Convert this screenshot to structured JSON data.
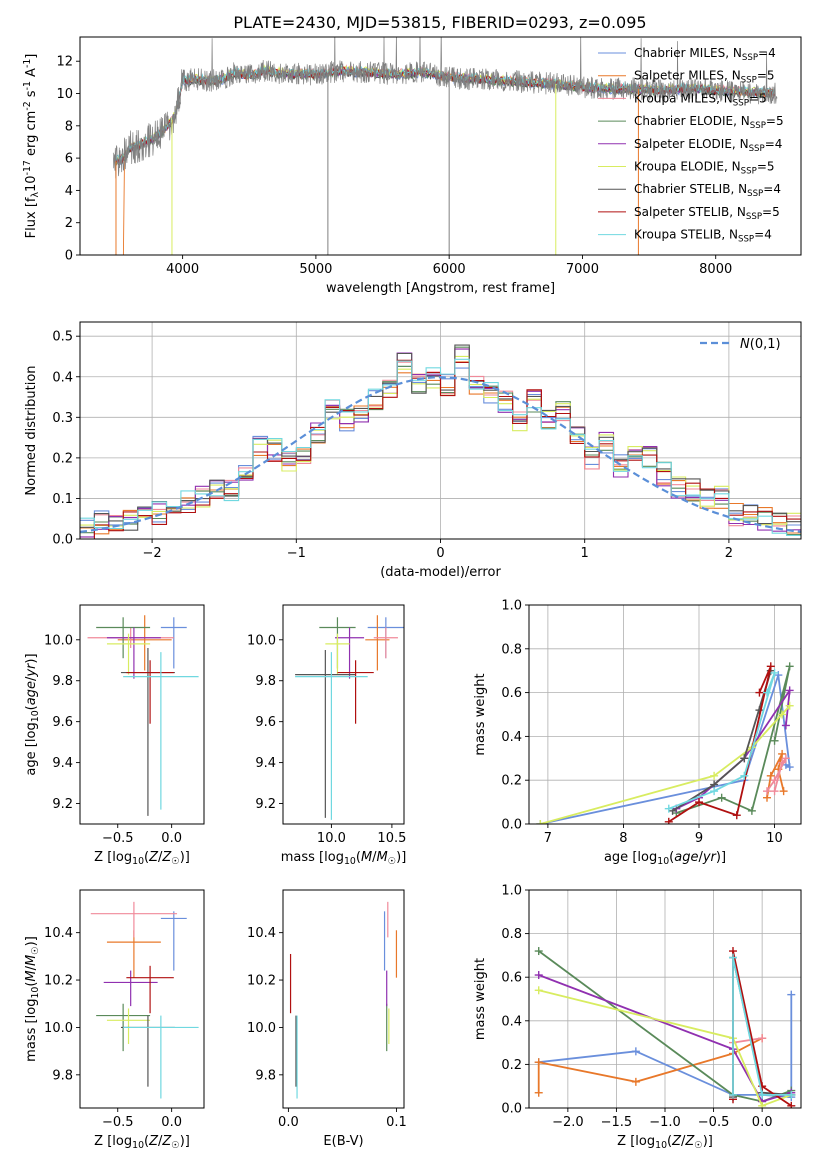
{
  "figure_title": "PLATE=2430, MJD=53815, FIBERID=0293, z=0.095",
  "model_colors": [
    "#6a8fdc",
    "#e8782a",
    "#f08a9a",
    "#5a8a5a",
    "#9030b0",
    "#d8ec60",
    "#555555",
    "#b01010",
    "#70d8e0"
  ],
  "chart_data": [
    {
      "id": "spectrum",
      "type": "line",
      "title": "PLATE=2430, MJD=53815, FIBERID=0293, z=0.095",
      "xlabel": "wavelength [Angstrom, rest frame]",
      "ylabel": "Flux [f$_\\lambda$10$^{-17}$ erg cm$^{-2}$ s$^{-1}$ A$^{-1}$]",
      "xlim": [
        3230,
        8640
      ],
      "ylim": [
        0,
        13.5
      ],
      "xticks": [
        4000,
        5000,
        6000,
        7000,
        8000
      ],
      "yticks": [
        0,
        2,
        4,
        6,
        8,
        10,
        12
      ],
      "grid": false,
      "legend_position": "right",
      "data_series": {
        "name": "data",
        "x": [
          3500,
          3550,
          3600,
          3700,
          3800,
          3900,
          3950,
          4000,
          4100,
          4200,
          4300,
          4400,
          4500,
          4600,
          4800,
          5000,
          5200,
          5400,
          5600,
          5800,
          6000,
          6200,
          6400,
          6600,
          6800,
          7000,
          7200,
          7400,
          7600,
          7800,
          8000,
          8200,
          8400
        ],
        "y": [
          5.8,
          6.0,
          6.6,
          6.9,
          7.3,
          8.1,
          8.8,
          10.8,
          10.9,
          10.8,
          10.9,
          11.3,
          11.1,
          11.4,
          11.2,
          11.2,
          11.4,
          11.3,
          11.2,
          11.3,
          11.0,
          10.9,
          10.8,
          10.7,
          10.6,
          10.4,
          10.3,
          10.3,
          10.2,
          10.3,
          10.2,
          10.1,
          10.0
        ]
      },
      "legend": [
        {
          "name": "Chabrier MILES, N$_{SSP}$=4",
          "color": "#6a8fdc"
        },
        {
          "name": "Salpeter MILES, N$_{SSP}$=5",
          "color": "#e8782a"
        },
        {
          "name": "Kroupa MILES, N$_{SSP}$=5",
          "color": "#f08a9a"
        },
        {
          "name": "Chabrier ELODIE, N$_{SSP}$=5",
          "color": "#5a8a5a"
        },
        {
          "name": "Salpeter ELODIE, N$_{SSP}$=4",
          "color": "#9030b0"
        },
        {
          "name": "Kroupa ELODIE, N$_{SSP}$=5",
          "color": "#d8ec60"
        },
        {
          "name": "Chabrier STELIB, N$_{SSP}$=4",
          "color": "#555555"
        },
        {
          "name": "Salpeter STELIB, N$_{SSP}$=5",
          "color": "#b01010"
        },
        {
          "name": "Kroupa STELIB, N$_{SSP}$=4",
          "color": "#70d8e0"
        }
      ]
    },
    {
      "id": "residual-hist",
      "type": "line",
      "xlabel": "(data-model)/error",
      "ylabel": "Normed distribution",
      "xlim": [
        -2.5,
        2.5
      ],
      "ylim": [
        0,
        0.535
      ],
      "xticks": [
        -2,
        -1,
        0,
        1,
        2
      ],
      "yticks": [
        0.0,
        0.1,
        0.2,
        0.3,
        0.4,
        0.5
      ],
      "grid": true,
      "legend": [
        {
          "name": "$\\mathcal{N}(0,1)$",
          "color": "#5b8fd8",
          "style": "dashed"
        }
      ],
      "legend_position": "top-right",
      "bin_width": 0.1,
      "histogram_bins_x_start": [
        -2.5,
        -2.4,
        -2.3,
        -2.2,
        -2.1,
        -2.0,
        -1.9,
        -1.8,
        -1.7,
        -1.6,
        -1.5,
        -1.4,
        -1.3,
        -1.2,
        -1.1,
        -1.0,
        -0.9,
        -0.8,
        -0.7,
        -0.6,
        -0.5,
        -0.4,
        -0.3,
        -0.2,
        -0.1,
        0.0,
        0.1,
        0.2,
        0.3,
        0.4,
        0.5,
        0.6,
        0.7,
        0.8,
        0.9,
        1.0,
        1.1,
        1.2,
        1.3,
        1.4,
        1.5,
        1.6,
        1.7,
        1.8,
        1.9,
        2.0,
        2.1,
        2.2,
        2.3,
        2.4
      ],
      "histogram_base_heights": [
        0.025,
        0.04,
        0.035,
        0.05,
        0.06,
        0.065,
        0.06,
        0.09,
        0.1,
        0.13,
        0.12,
        0.16,
        0.225,
        0.22,
        0.19,
        0.2,
        0.26,
        0.32,
        0.29,
        0.3,
        0.34,
        0.37,
        0.43,
        0.38,
        0.4,
        0.38,
        0.45,
        0.38,
        0.36,
        0.34,
        0.29,
        0.34,
        0.3,
        0.31,
        0.26,
        0.2,
        0.24,
        0.18,
        0.22,
        0.2,
        0.16,
        0.13,
        0.12,
        0.1,
        0.1,
        0.06,
        0.055,
        0.05,
        0.04,
        0.035
      ],
      "gaussian": {
        "mean": 0,
        "sigma": 1
      }
    },
    {
      "id": "age-vs-z",
      "type": "scatter",
      "xlabel": "Z [log$_{10}$($Z/Z_\\odot$)]",
      "ylabel": "age  [log$_{10}$($age/yr$)]",
      "xlim": [
        -0.85,
        0.3
      ],
      "ylim": [
        9.1,
        10.17
      ],
      "xticks": [
        -0.5,
        0.0
      ],
      "yticks": [
        9.2,
        9.4,
        9.6,
        9.8,
        10.0
      ],
      "points": [
        {
          "x": 0.02,
          "y": 10.06,
          "xerr": 0.12,
          "yerr": [
            0.2,
            0.05
          ],
          "color": "#6a8fdc"
        },
        {
          "x": -0.25,
          "y": 10.0,
          "xerr": 0.25,
          "yerr": [
            0.15,
            0.12
          ],
          "color": "#e8782a"
        },
        {
          "x": -0.38,
          "y": 10.01,
          "xerr": 0.4,
          "yerr": [
            0.05,
            0.05
          ],
          "color": "#f08a9a"
        },
        {
          "x": -0.45,
          "y": 10.06,
          "xerr": 0.25,
          "yerr": [
            0.15,
            0.05
          ],
          "color": "#5a8a5a"
        },
        {
          "x": -0.35,
          "y": 10.01,
          "xerr": 0.25,
          "yerr": [
            0.2,
            0.05
          ],
          "color": "#9030b0"
        },
        {
          "x": -0.4,
          "y": 9.98,
          "xerr": 0.2,
          "yerr": [
            0.15,
            0.05
          ],
          "color": "#d8ec60"
        },
        {
          "x": -0.22,
          "y": 9.84,
          "xerr": 0.25,
          "yerr": [
            0.7,
            0.12
          ],
          "color": "#555555"
        },
        {
          "x": -0.2,
          "y": 9.84,
          "xerr": 0.22,
          "yerr": [
            0.25,
            0.06
          ],
          "color": "#b01010"
        },
        {
          "x": -0.1,
          "y": 9.82,
          "xerr": 0.35,
          "yerr": [
            0.65,
            0.12
          ],
          "color": "#70d8e0"
        }
      ]
    },
    {
      "id": "age-vs-mass",
      "type": "scatter",
      "xlabel": "mass [log$_{10}$($M/M_\\odot$)]",
      "ylabel": "",
      "xlim": [
        9.6,
        10.6
      ],
      "ylim": [
        9.1,
        10.17
      ],
      "xticks": [
        10.0,
        10.5
      ],
      "yticks": [
        9.2,
        9.4,
        9.6,
        9.8,
        10.0
      ],
      "points": [
        {
          "x": 10.45,
          "y": 10.06,
          "xerr": 0.15,
          "yerr": [
            0.15,
            0.05
          ],
          "color": "#6a8fdc"
        },
        {
          "x": 10.38,
          "y": 10.0,
          "xerr": 0.1,
          "yerr": [
            0.15,
            0.12
          ],
          "color": "#e8782a"
        },
        {
          "x": 10.45,
          "y": 10.01,
          "xerr": 0.1,
          "yerr": [
            0.1,
            0.05
          ],
          "color": "#f08a9a"
        },
        {
          "x": 10.05,
          "y": 10.06,
          "xerr": 0.15,
          "yerr": [
            0.2,
            0.05
          ],
          "color": "#5a8a5a"
        },
        {
          "x": 10.15,
          "y": 10.01,
          "xerr": 0.12,
          "yerr": [
            0.2,
            0.05
          ],
          "color": "#9030b0"
        },
        {
          "x": 10.05,
          "y": 9.98,
          "xerr": 0.1,
          "yerr": [
            0.15,
            0.05
          ],
          "color": "#d8ec60"
        },
        {
          "x": 9.95,
          "y": 9.83,
          "xerr": 0.25,
          "yerr": [
            0.7,
            0.12
          ],
          "color": "#555555"
        },
        {
          "x": 10.2,
          "y": 9.84,
          "xerr": 0.15,
          "yerr": [
            0.25,
            0.06
          ],
          "color": "#b01010"
        },
        {
          "x": 10.0,
          "y": 9.82,
          "xerr": 0.3,
          "yerr": [
            0.7,
            0.12
          ],
          "color": "#70d8e0"
        }
      ]
    },
    {
      "id": "weight-vs-age",
      "type": "line",
      "xlabel": "age  [log$_{10}$($age/yr$)]",
      "ylabel": "mass weight",
      "xlim": [
        6.75,
        10.35
      ],
      "ylim": [
        0.0,
        1.0
      ],
      "xticks": [
        7,
        8,
        9,
        10
      ],
      "yticks": [
        0.0,
        0.2,
        0.4,
        0.6,
        0.8,
        1.0
      ],
      "grid": true,
      "series": [
        {
          "color": "#6a8fdc",
          "x": [
            6.9,
            9.6,
            10.05,
            10.2,
            10.15
          ],
          "y": [
            0.0,
            0.2,
            0.68,
            0.26,
            0.27
          ]
        },
        {
          "color": "#e8782a",
          "x": [
            9.9,
            9.95,
            10.1,
            10.05,
            10.12
          ],
          "y": [
            0.12,
            0.22,
            0.32,
            0.25,
            0.15
          ]
        },
        {
          "color": "#f08a9a",
          "x": [
            9.9,
            10.0,
            10.15,
            10.1,
            10.0
          ],
          "y": [
            0.15,
            0.2,
            0.3,
            0.28,
            0.15
          ]
        },
        {
          "color": "#5a8a5a",
          "x": [
            8.7,
            9.3,
            9.7,
            10.2,
            10.0
          ],
          "y": [
            0.05,
            0.12,
            0.06,
            0.72,
            0.38
          ]
        },
        {
          "color": "#9030b0",
          "x": [
            8.7,
            9.0,
            9.6,
            10.2,
            10.15
          ],
          "y": [
            0.07,
            0.12,
            0.3,
            0.61,
            0.45
          ]
        },
        {
          "color": "#d8ec60",
          "x": [
            6.9,
            9.2,
            9.7,
            10.2,
            10.1
          ],
          "y": [
            0.0,
            0.22,
            0.35,
            0.54,
            0.5
          ]
        },
        {
          "color": "#555555",
          "x": [
            8.65,
            9.2,
            9.6,
            9.95,
            9.8
          ],
          "y": [
            0.06,
            0.18,
            0.3,
            0.7,
            0.52
          ]
        },
        {
          "color": "#b01010",
          "x": [
            8.6,
            9.0,
            9.5,
            9.95,
            9.8
          ],
          "y": [
            0.01,
            0.1,
            0.04,
            0.72,
            0.6
          ]
        },
        {
          "color": "#70d8e0",
          "x": [
            8.6,
            9.2,
            9.6,
            10.0,
            9.9
          ],
          "y": [
            0.07,
            0.15,
            0.22,
            0.69,
            0.6
          ]
        }
      ]
    },
    {
      "id": "mass-vs-z",
      "type": "scatter",
      "xlabel": "Z [log$_{10}$($Z/Z_\\odot$)]",
      "ylabel": "mass [log$_{10}$($M/M_\\odot$)]",
      "xlim": [
        -0.85,
        0.3
      ],
      "ylim": [
        9.66,
        10.58
      ],
      "xticks": [
        -0.5,
        0.0
      ],
      "yticks": [
        9.8,
        10.0,
        10.2,
        10.4
      ],
      "points": [
        {
          "x": 0.02,
          "y": 10.46,
          "xerr": 0.12,
          "yerr": [
            0.22,
            0.03
          ],
          "color": "#6a8fdc"
        },
        {
          "x": -0.35,
          "y": 10.36,
          "xerr": 0.25,
          "yerr": [
            0.15,
            0.05
          ],
          "color": "#e8782a"
        },
        {
          "x": -0.35,
          "y": 10.48,
          "xerr": 0.4,
          "yerr": [
            0.1,
            0.05
          ],
          "color": "#f08a9a"
        },
        {
          "x": -0.45,
          "y": 10.05,
          "xerr": 0.25,
          "yerr": [
            0.15,
            0.05
          ],
          "color": "#5a8a5a"
        },
        {
          "x": -0.38,
          "y": 10.19,
          "xerr": 0.25,
          "yerr": [
            0.1,
            0.05
          ],
          "color": "#9030b0"
        },
        {
          "x": -0.4,
          "y": 10.03,
          "xerr": 0.2,
          "yerr": [
            0.1,
            0.05
          ],
          "color": "#d8ec60"
        },
        {
          "x": -0.22,
          "y": 10.0,
          "xerr": 0.25,
          "yerr": [
            0.25,
            0.05
          ],
          "color": "#555555"
        },
        {
          "x": -0.2,
          "y": 10.21,
          "xerr": 0.22,
          "yerr": [
            0.15,
            0.05
          ],
          "color": "#b01010"
        },
        {
          "x": -0.1,
          "y": 10.0,
          "xerr": 0.35,
          "yerr": [
            0.3,
            0.05
          ],
          "color": "#70d8e0"
        }
      ]
    },
    {
      "id": "mass-vs-ebv",
      "type": "scatter",
      "xlabel": "E(B-V)",
      "ylabel": "",
      "xlim": [
        -0.005,
        0.107
      ],
      "ylim": [
        9.66,
        10.58
      ],
      "xticks": [
        0,
        0.1
      ],
      "yticks": [
        9.8,
        10.0,
        10.2,
        10.4
      ],
      "points": [
        {
          "x": 0.089,
          "y": 10.46,
          "xerr": 0,
          "yerr": [
            0.22,
            0.03
          ],
          "color": "#6a8fdc"
        },
        {
          "x": 0.1,
          "y": 10.36,
          "xerr": 0,
          "yerr": [
            0.15,
            0.05
          ],
          "color": "#e8782a"
        },
        {
          "x": 0.092,
          "y": 10.48,
          "xerr": 0,
          "yerr": [
            0.1,
            0.05
          ],
          "color": "#f08a9a"
        },
        {
          "x": 0.091,
          "y": 10.05,
          "xerr": 0,
          "yerr": [
            0.15,
            0.05
          ],
          "color": "#5a8a5a"
        },
        {
          "x": 0.091,
          "y": 10.19,
          "xerr": 0,
          "yerr": [
            0.1,
            0.05
          ],
          "color": "#9030b0"
        },
        {
          "x": 0.093,
          "y": 10.03,
          "xerr": 0,
          "yerr": [
            0.1,
            0.05
          ],
          "color": "#d8ec60"
        },
        {
          "x": 0.007,
          "y": 10.0,
          "xerr": 0,
          "yerr": [
            0.25,
            0.05
          ],
          "color": "#555555"
        },
        {
          "x": 0.002,
          "y": 10.21,
          "xerr": 0,
          "yerr": [
            0.15,
            0.1
          ],
          "color": "#b01010"
        },
        {
          "x": 0.008,
          "y": 10.0,
          "xerr": 0,
          "yerr": [
            0.3,
            0.05
          ],
          "color": "#70d8e0"
        }
      ]
    },
    {
      "id": "weight-vs-z",
      "type": "line",
      "xlabel": "Z [log$_{10}$($Z/Z_\\odot$)]",
      "ylabel": "mass weight",
      "xlim": [
        -2.4,
        0.4
      ],
      "ylim": [
        0.0,
        1.0
      ],
      "xticks": [
        -2.0,
        -1.5,
        -1.0,
        -0.5,
        0.0
      ],
      "yticks": [
        0.0,
        0.2,
        0.4,
        0.6,
        0.8,
        1.0
      ],
      "grid": true,
      "series": [
        {
          "color": "#6a8fdc",
          "x": [
            -2.3,
            -1.3,
            -0.3,
            0.0,
            0.3,
            0.3
          ],
          "y": [
            0.21,
            0.26,
            0.06,
            0.06,
            0.05,
            0.52
          ]
        },
        {
          "color": "#e8782a",
          "x": [
            -2.3,
            -2.3,
            -1.3,
            -0.3,
            0.0
          ],
          "y": [
            0.07,
            0.21,
            0.12,
            0.25,
            0.32
          ]
        },
        {
          "color": "#f08a9a",
          "x": [
            -0.3,
            -0.3,
            0.0
          ],
          "y": [
            0.06,
            0.3,
            0.32
          ]
        },
        {
          "color": "#5a8a5a",
          "x": [
            -2.3,
            -0.3,
            0.0,
            0.3
          ],
          "y": [
            0.72,
            0.06,
            0.03,
            0.08
          ]
        },
        {
          "color": "#9030b0",
          "x": [
            -2.3,
            -0.3,
            0.0,
            0.3
          ],
          "y": [
            0.61,
            0.27,
            0.03,
            0.07
          ]
        },
        {
          "color": "#d8ec60",
          "x": [
            -2.3,
            -0.3,
            0.0,
            0.3
          ],
          "y": [
            0.54,
            0.32,
            0.01,
            0.06
          ]
        },
        {
          "color": "#555555",
          "x": [
            -0.3,
            -0.3,
            0.0,
            0.3
          ],
          "y": [
            0.05,
            0.69,
            0.07,
            0.06
          ]
        },
        {
          "color": "#b01010",
          "x": [
            -0.3,
            -0.3,
            0.0,
            0.3
          ],
          "y": [
            0.04,
            0.72,
            0.1,
            0.01
          ]
        },
        {
          "color": "#70d8e0",
          "x": [
            -0.3,
            -0.3,
            0.0,
            0.3
          ],
          "y": [
            0.06,
            0.69,
            0.06,
            0.06
          ]
        }
      ]
    }
  ]
}
